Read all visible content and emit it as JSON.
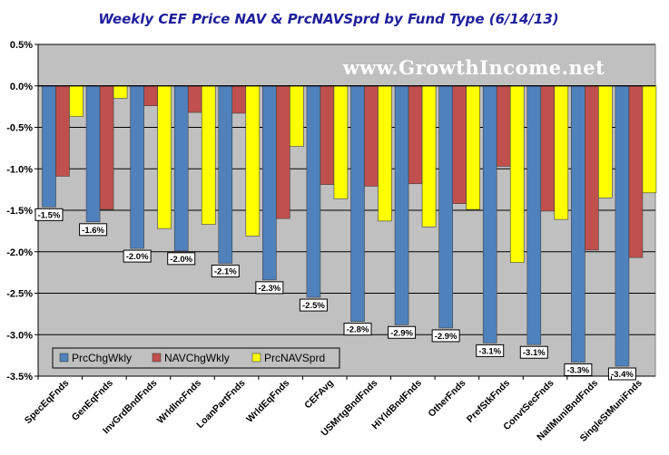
{
  "chart_data": {
    "type": "bar",
    "title": "Weekly CEF Price NAV & PrcNAVSprd by Fund Type  (6/14/13)",
    "watermark": "www.GrowthIncome.net",
    "categories": [
      "SpecEqFnds",
      "GenEqFnds",
      "InvGrdBndFnds",
      "WrldIncFnds",
      "LoanPartFnds",
      "WrldEqFnds",
      "CEFAvg",
      "USMrtgBndFnds",
      "HiYldBndFnds",
      "OtherFnds",
      "PrefStkFnds",
      "ConvtSecFnds",
      "NatlMuniBndFnds",
      "SingleStMuniFnds"
    ],
    "series": [
      {
        "name": "PrcChgWkly",
        "color": "#4f81bd",
        "values": [
          -1.46,
          -1.64,
          -1.96,
          -1.99,
          -2.14,
          -2.34,
          -2.55,
          -2.84,
          -2.88,
          -2.92,
          -3.1,
          -3.12,
          -3.33,
          -3.38
        ]
      },
      {
        "name": "NAVChgWkly",
        "color": "#c0504d",
        "values": [
          -1.09,
          -1.49,
          -0.24,
          -0.32,
          -0.33,
          -1.6,
          -1.19,
          -1.21,
          -1.18,
          -1.42,
          -0.97,
          -1.51,
          -1.98,
          -2.07
        ]
      },
      {
        "name": "PrcNAVSprd",
        "color": "#ffff00",
        "values": [
          -0.37,
          -0.15,
          -1.72,
          -1.67,
          -1.81,
          -0.73,
          -1.36,
          -1.63,
          -1.7,
          -1.49,
          -2.13,
          -1.61,
          -1.35,
          -1.29
        ]
      }
    ],
    "data_labels": [
      "-1.5%",
      "-1.6%",
      "-2.0%",
      "-2.0%",
      "-2.1%",
      "-2.3%",
      "-2.5%",
      "-2.8%",
      "-2.9%",
      "-2.9%",
      "-3.1%",
      "-3.1%",
      "-3.3%",
      "-3.4%"
    ],
    "ylim": [
      -3.5,
      0.5
    ],
    "yticks": [
      0.5,
      0.0,
      -0.5,
      -1.0,
      -1.5,
      -2.0,
      -2.5,
      -3.0,
      -3.5
    ],
    "ytick_labels": [
      "0.5%",
      "0.0%",
      "-0.5%",
      "-1.0%",
      "-1.5%",
      "-2.0%",
      "-2.5%",
      "-3.0%",
      "-3.5%"
    ],
    "grid": true,
    "legend_position": "bottom-left"
  }
}
